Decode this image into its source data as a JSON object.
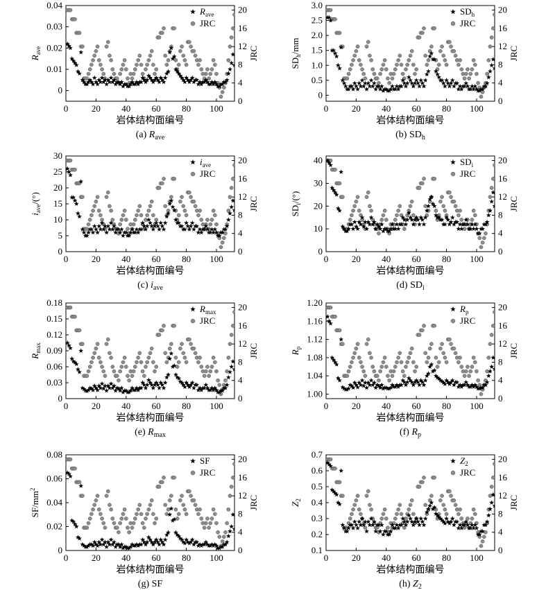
{
  "figure": {
    "panels": [
      {
        "caption": "(a) ",
        "caption_var": "R",
        "caption_sub": "ave",
        "ylabel_main": "R",
        "ylabel_sub": "ave",
        "ylabel_unit": "",
        "legend_main": "R",
        "legend_sub": "ave",
        "legend_italic": true,
        "xlabel": "岩体结构面编号",
        "y2label": "JRC",
        "y2_legend": "JRC",
        "yticks": [
          "0",
          "0.01",
          "0.02",
          "0.03",
          "0.04"
        ],
        "ylim": [
          -0.005,
          0.04
        ]
      },
      {
        "caption": "(b) ",
        "caption_var": "SD",
        "caption_sub": "h",
        "ylabel_main": "SD",
        "ylabel_sub": "h",
        "ylabel_unit": "/mm",
        "legend_main": "SD",
        "legend_sub": "h",
        "legend_italic": false,
        "xlabel": "岩体结构面编号",
        "y2label": "JRC",
        "y2_legend": "JRC",
        "yticks": [
          "0",
          "0.5",
          "1.0",
          "1.5",
          "2.0",
          "2.5",
          "3.0"
        ],
        "ylim": [
          -0.2,
          3.0
        ]
      },
      {
        "caption": "(c) ",
        "caption_var": "i",
        "caption_sub": "ave",
        "ylabel_main": "i",
        "ylabel_sub": "ave",
        "ylabel_unit": "/(°)",
        "legend_main": "i",
        "legend_sub": "ave",
        "legend_italic": true,
        "xlabel": "岩体结构面编号",
        "y2label": "JRC",
        "y2_legend": "JRC",
        "yticks": [
          "0",
          "5",
          "10",
          "15",
          "20",
          "25",
          "30"
        ],
        "ylim": [
          0,
          30
        ]
      },
      {
        "caption": "(d) ",
        "caption_var": "SD",
        "caption_sub": "i",
        "ylabel_main": "SD",
        "ylabel_sub": "i",
        "ylabel_unit": "/(°)",
        "legend_main": "SD",
        "legend_sub": "i",
        "legend_italic": false,
        "xlabel": "岩体结构面编号",
        "y2label": "JRC",
        "y2_legend": "JRC",
        "yticks": [
          "0",
          "10",
          "20",
          "30",
          "40"
        ],
        "ylim": [
          0,
          42
        ]
      },
      {
        "caption": "(e) ",
        "caption_var": "R",
        "caption_sub": "max",
        "ylabel_main": "R",
        "ylabel_sub": "max",
        "ylabel_unit": "",
        "legend_main": "R",
        "legend_sub": "max",
        "legend_italic": true,
        "xlabel": "岩体结构面编号",
        "y2label": "JRC",
        "y2_legend": "JRC",
        "yticks": [
          "0",
          "0.03",
          "0.06",
          "0.09",
          "0.12",
          "0.15",
          "0.18"
        ],
        "ylim": [
          0,
          0.18
        ]
      },
      {
        "caption": "(f) ",
        "caption_var": "R",
        "caption_sub": "p",
        "ylabel_main": "R",
        "ylabel_sub": "p",
        "ylabel_unit": "",
        "legend_main": "R",
        "legend_sub": "p",
        "legend_italic": true,
        "xlabel": "岩体结构面编号",
        "y2label": "JRC",
        "y2_legend": "JRC",
        "yticks": [
          "1.00",
          "1.04",
          "1.08",
          "1.12",
          "1.16",
          "1.20"
        ],
        "ylim": [
          0.99,
          1.2
        ]
      },
      {
        "caption": "(g) ",
        "caption_var": "SF",
        "caption_sub": "",
        "ylabel_main": "SF/mm",
        "ylabel_sub": "",
        "ylabel_unit": "",
        "ylabel_sup": "2",
        "legend_main": "SF",
        "legend_sub": "",
        "legend_italic": false,
        "xlabel": "岩体结构面编号",
        "y2label": "JRC",
        "y2_legend": "JRC",
        "yticks": [
          "0",
          "0.02",
          "0.04",
          "0.06",
          "0.08"
        ],
        "ylim": [
          0,
          0.08
        ]
      },
      {
        "caption": "(h) ",
        "caption_var": "Z",
        "caption_sub": "2",
        "ylabel_main": "Z",
        "ylabel_sub": "2",
        "ylabel_unit": "",
        "legend_main": "Z",
        "legend_sub": "2",
        "legend_italic": true,
        "xlabel": "岩体结构面编号",
        "y2label": "JRC",
        "y2_legend": "JRC",
        "yticks": [
          "0.1",
          "0.2",
          "0.3",
          "0.4",
          "0.5",
          "0.6",
          "0.7"
        ],
        "ylim": [
          0.1,
          0.7
        ]
      }
    ]
  },
  "chart_data": {
    "type": "scatter",
    "x_axis": {
      "label": "岩体结构面编号",
      "ticks": [
        0,
        20,
        40,
        60,
        80,
        100
      ],
      "range": [
        0,
        112
      ]
    },
    "right_axis": {
      "label": "JRC",
      "ticks": [
        0,
        4,
        8,
        12,
        16,
        20
      ],
      "range": [
        0,
        21
      ]
    },
    "jrc": [
      20,
      20,
      20,
      18,
      18,
      18,
      15,
      15,
      15,
      12,
      12,
      5,
      5,
      5,
      6,
      7,
      8,
      9,
      10,
      11,
      12,
      9,
      8,
      7,
      6,
      5,
      12,
      13,
      10,
      9,
      7,
      6,
      5,
      5,
      4,
      6,
      7,
      8,
      9,
      7,
      5,
      4,
      6,
      5,
      6,
      7,
      8,
      9,
      10,
      8,
      6,
      5,
      7,
      8,
      9,
      10,
      11,
      8,
      6,
      7,
      14,
      14,
      15,
      15,
      16,
      10,
      8,
      9,
      11,
      12,
      16,
      16,
      9,
      7,
      8,
      11,
      12,
      10,
      9,
      8,
      13,
      13,
      12,
      11,
      11,
      10,
      9,
      8,
      9,
      7,
      6,
      5,
      6,
      7,
      5,
      6,
      7,
      9,
      8,
      6,
      4,
      3,
      1,
      2,
      3,
      4,
      6,
      9,
      12,
      14,
      16,
      19
    ],
    "series_ave": [
      0.022,
      0.021,
      0.02,
      0.015,
      0.014,
      0.013,
      0.012,
      0.009,
      0.008,
      0.018,
      0.005,
      0.004,
      0.003,
      0.003,
      0.004,
      0.005,
      0.004,
      0.003,
      0.006,
      0.004,
      0.003,
      0.005,
      0.004,
      0.006,
      0.004,
      0.005,
      0.003,
      0.005,
      0.004,
      0.006,
      0.004,
      0.005,
      0.003,
      0.004,
      0.004,
      0.003,
      0.004,
      0.002,
      0.003,
      0.003,
      0.002,
      0.002,
      0.003,
      0.004,
      0.003,
      0.003,
      0.004,
      0.003,
      0.004,
      0.004,
      0.006,
      0.005,
      0.004,
      0.005,
      0.007,
      0.006,
      0.005,
      0.004,
      0.005,
      0.006,
      0.005,
      0.004,
      0.006,
      0.005,
      0.004,
      0.006,
      0.008,
      0.009,
      0.018,
      0.02,
      0.015,
      0.016,
      0.01,
      0.009,
      0.008,
      0.007,
      0.006,
      0.005,
      0.004,
      0.006,
      0.005,
      0.004,
      0.005,
      0.006,
      0.004,
      0.005,
      0.005,
      0.003,
      0.004,
      0.003,
      0.004,
      0.004,
      0.005,
      0.004,
      0.003,
      0.003,
      0.004,
      0.003,
      0.004,
      0.003,
      0.002,
      0.002,
      0.003,
      0.003,
      0.004,
      0.004,
      0.005,
      0.008,
      0.01,
      0.013,
      0.017,
      0.012
    ],
    "series_sdh": [
      2.6,
      2.6,
      2.5,
      1.5,
      1.5,
      1.4,
      1.3,
      1.0,
      0.9,
      1.6,
      0.5,
      0.4,
      0.3,
      0.2,
      0.2,
      0.3,
      0.3,
      0.2,
      0.4,
      0.3,
      0.2,
      0.4,
      0.3,
      0.5,
      0.3,
      0.4,
      0.2,
      0.4,
      0.3,
      0.5,
      0.3,
      0.4,
      0.2,
      0.3,
      0.3,
      0.2,
      0.3,
      0.15,
      0.2,
      0.2,
      0.15,
      0.15,
      0.2,
      0.3,
      0.2,
      0.2,
      0.3,
      0.2,
      0.3,
      0.3,
      0.5,
      0.4,
      0.3,
      0.4,
      0.6,
      0.5,
      0.4,
      0.3,
      0.4,
      0.5,
      0.4,
      0.3,
      0.5,
      0.4,
      0.3,
      0.5,
      0.7,
      0.8,
      1.3,
      1.4,
      1.2,
      1.2,
      0.8,
      0.7,
      0.6,
      0.5,
      0.5,
      0.4,
      0.3,
      0.5,
      0.4,
      0.3,
      0.4,
      0.5,
      0.3,
      0.4,
      0.4,
      0.2,
      0.3,
      0.2,
      0.3,
      0.3,
      0.4,
      0.3,
      0.2,
      0.2,
      0.3,
      0.2,
      0.3,
      0.2,
      0.15,
      0.15,
      0.2,
      0.2,
      0.3,
      0.3,
      0.4,
      0.6,
      0.8,
      1.0,
      1.2,
      0.9
    ],
    "series_iave": [
      26,
      25,
      24,
      17,
      17,
      16,
      15,
      12,
      11,
      22,
      7,
      6,
      5,
      5,
      6,
      7,
      7,
      6,
      8,
      7,
      6,
      8,
      7,
      9,
      7,
      8,
      6,
      8,
      7,
      9,
      7,
      8,
      6,
      7,
      7,
      6,
      7,
      5,
      6,
      6,
      5,
      5,
      6,
      7,
      6,
      6,
      7,
      6,
      7,
      7,
      9,
      8,
      7,
      8,
      10,
      9,
      8,
      7,
      8,
      9,
      8,
      7,
      9,
      8,
      7,
      9,
      11,
      12,
      15,
      16,
      14,
      13,
      10,
      9,
      9,
      8,
      8,
      7,
      7,
      9,
      8,
      7,
      8,
      9,
      7,
      8,
      8,
      6,
      7,
      6,
      7,
      7,
      8,
      7,
      6,
      6,
      7,
      6,
      7,
      6,
      5,
      5,
      6,
      6,
      7,
      7,
      8,
      10,
      12,
      14,
      16,
      13
    ],
    "series_sdi": [
      40,
      39,
      38,
      28,
      27,
      26,
      25,
      19,
      18,
      35,
      11,
      10,
      9,
      9,
      10,
      12,
      12,
      10,
      13,
      11,
      10,
      13,
      12,
      15,
      11,
      13,
      10,
      13,
      12,
      15,
      12,
      13,
      10,
      12,
      11,
      10,
      12,
      9,
      10,
      10,
      9,
      9,
      10,
      12,
      10,
      10,
      12,
      10,
      12,
      12,
      15,
      14,
      12,
      14,
      17,
      15,
      14,
      12,
      14,
      15,
      14,
      12,
      15,
      14,
      12,
      15,
      18,
      20,
      23,
      24,
      21,
      20,
      16,
      15,
      15,
      14,
      14,
      12,
      12,
      15,
      14,
      12,
      13,
      15,
      12,
      13,
      13,
      10,
      12,
      10,
      12,
      12,
      14,
      12,
      10,
      10,
      12,
      10,
      12,
      10,
      8,
      8,
      10,
      10,
      12,
      12,
      13,
      16,
      18,
      22,
      26,
      20
    ],
    "series_rmax": [
      0.105,
      0.1,
      0.095,
      0.075,
      0.07,
      0.068,
      0.065,
      0.055,
      0.05,
      0.09,
      0.02,
      0.018,
      0.015,
      0.014,
      0.016,
      0.02,
      0.019,
      0.016,
      0.024,
      0.02,
      0.016,
      0.024,
      0.02,
      0.028,
      0.019,
      0.024,
      0.015,
      0.024,
      0.02,
      0.028,
      0.02,
      0.024,
      0.015,
      0.02,
      0.019,
      0.015,
      0.02,
      0.012,
      0.015,
      0.015,
      0.012,
      0.012,
      0.015,
      0.02,
      0.016,
      0.016,
      0.02,
      0.016,
      0.02,
      0.02,
      0.03,
      0.026,
      0.02,
      0.026,
      0.035,
      0.03,
      0.026,
      0.02,
      0.026,
      0.03,
      0.026,
      0.02,
      0.03,
      0.026,
      0.02,
      0.03,
      0.04,
      0.045,
      0.075,
      0.085,
      0.06,
      0.062,
      0.045,
      0.04,
      0.038,
      0.032,
      0.03,
      0.026,
      0.022,
      0.03,
      0.026,
      0.022,
      0.026,
      0.03,
      0.02,
      0.026,
      0.026,
      0.016,
      0.02,
      0.016,
      0.02,
      0.02,
      0.026,
      0.02,
      0.016,
      0.016,
      0.02,
      0.016,
      0.02,
      0.016,
      0.012,
      0.012,
      0.015,
      0.015,
      0.02,
      0.02,
      0.026,
      0.04,
      0.05,
      0.06,
      0.07,
      0.055
    ],
    "series_rp": [
      1.17,
      1.16,
      1.155,
      1.08,
      1.075,
      1.07,
      1.065,
      1.035,
      1.03,
      1.12,
      1.015,
      1.012,
      1.01,
      1.01,
      1.012,
      1.02,
      1.018,
      1.014,
      1.025,
      1.02,
      1.015,
      1.025,
      1.02,
      1.03,
      1.018,
      1.025,
      1.014,
      1.025,
      1.02,
      1.03,
      1.02,
      1.025,
      1.014,
      1.02,
      1.018,
      1.014,
      1.02,
      1.012,
      1.014,
      1.014,
      1.012,
      1.012,
      1.014,
      1.02,
      1.016,
      1.016,
      1.02,
      1.016,
      1.02,
      1.02,
      1.03,
      1.026,
      1.02,
      1.026,
      1.035,
      1.03,
      1.026,
      1.02,
      1.026,
      1.03,
      1.026,
      1.02,
      1.03,
      1.026,
      1.02,
      1.03,
      1.04,
      1.045,
      1.06,
      1.065,
      1.05,
      1.052,
      1.04,
      1.036,
      1.034,
      1.03,
      1.028,
      1.025,
      1.022,
      1.03,
      1.026,
      1.022,
      1.026,
      1.03,
      1.02,
      1.026,
      1.026,
      1.016,
      1.02,
      1.016,
      1.02,
      1.02,
      1.026,
      1.02,
      1.016,
      1.016,
      1.02,
      1.016,
      1.02,
      1.016,
      1.012,
      1.012,
      1.014,
      1.014,
      1.02,
      1.02,
      1.026,
      1.04,
      1.05,
      1.06,
      1.08,
      1.055
    ],
    "series_sf": [
      0.065,
      0.064,
      0.062,
      0.025,
      0.024,
      0.022,
      0.02,
      0.011,
      0.01,
      0.054,
      0.005,
      0.004,
      0.003,
      0.003,
      0.004,
      0.005,
      0.005,
      0.004,
      0.007,
      0.005,
      0.004,
      0.007,
      0.005,
      0.009,
      0.005,
      0.007,
      0.003,
      0.007,
      0.005,
      0.009,
      0.005,
      0.007,
      0.003,
      0.005,
      0.005,
      0.003,
      0.005,
      0.002,
      0.003,
      0.003,
      0.002,
      0.002,
      0.003,
      0.005,
      0.004,
      0.004,
      0.005,
      0.004,
      0.005,
      0.005,
      0.009,
      0.007,
      0.005,
      0.007,
      0.011,
      0.009,
      0.007,
      0.005,
      0.007,
      0.009,
      0.007,
      0.005,
      0.009,
      0.007,
      0.005,
      0.009,
      0.013,
      0.015,
      0.03,
      0.035,
      0.025,
      0.026,
      0.015,
      0.013,
      0.012,
      0.01,
      0.009,
      0.007,
      0.006,
      0.009,
      0.007,
      0.006,
      0.007,
      0.009,
      0.005,
      0.007,
      0.007,
      0.004,
      0.005,
      0.004,
      0.005,
      0.005,
      0.007,
      0.005,
      0.004,
      0.004,
      0.005,
      0.004,
      0.005,
      0.004,
      0.002,
      0.002,
      0.003,
      0.003,
      0.005,
      0.005,
      0.007,
      0.012,
      0.016,
      0.02,
      0.03,
      0.018
    ],
    "series_z2": [
      0.65,
      0.64,
      0.63,
      0.48,
      0.47,
      0.46,
      0.45,
      0.4,
      0.39,
      0.6,
      0.26,
      0.24,
      0.22,
      0.22,
      0.24,
      0.26,
      0.26,
      0.24,
      0.28,
      0.26,
      0.24,
      0.28,
      0.26,
      0.3,
      0.26,
      0.28,
      0.22,
      0.28,
      0.26,
      0.3,
      0.26,
      0.28,
      0.22,
      0.26,
      0.26,
      0.22,
      0.26,
      0.2,
      0.22,
      0.22,
      0.2,
      0.2,
      0.22,
      0.26,
      0.24,
      0.24,
      0.26,
      0.24,
      0.26,
      0.26,
      0.3,
      0.28,
      0.26,
      0.28,
      0.32,
      0.3,
      0.28,
      0.26,
      0.28,
      0.3,
      0.28,
      0.26,
      0.3,
      0.28,
      0.26,
      0.3,
      0.34,
      0.36,
      0.38,
      0.4,
      0.36,
      0.37,
      0.33,
      0.32,
      0.31,
      0.3,
      0.29,
      0.28,
      0.27,
      0.3,
      0.28,
      0.27,
      0.28,
      0.3,
      0.26,
      0.28,
      0.28,
      0.24,
      0.26,
      0.24,
      0.26,
      0.26,
      0.28,
      0.26,
      0.24,
      0.24,
      0.26,
      0.24,
      0.26,
      0.24,
      0.2,
      0.2,
      0.22,
      0.22,
      0.26,
      0.26,
      0.28,
      0.32,
      0.36,
      0.4,
      0.45,
      0.38
    ]
  },
  "styles": {
    "star_color": "#000000",
    "jrc_color": "#8c8c8c",
    "jrc_edge": "#555555"
  }
}
